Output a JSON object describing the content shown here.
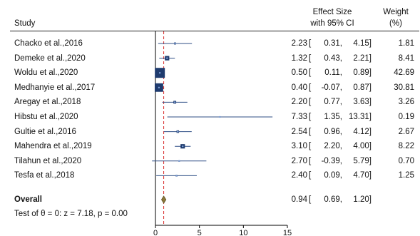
{
  "headers": {
    "study": "Study",
    "effect_line1": "Effect Size",
    "effect_line2": "with 95% CI",
    "weight_line1": "Weight",
    "weight_line2": "(%)"
  },
  "overall": {
    "label": "Overall",
    "es": "0.94",
    "lo": "0.69,",
    "hi": "1.20]",
    "test": "Test of θ = 0: z = 7.18, p = 0.00"
  },
  "colors": {
    "marker": "#1f3b6e",
    "ci_line": "#2f4f86",
    "ref_line": "#d62728",
    "diamond_fill": "#8c7a3a",
    "axis": "#000000"
  },
  "chart_data": {
    "type": "forest",
    "xlim": [
      0,
      15
    ],
    "x_ticks": [
      "0",
      "5",
      "10",
      "15"
    ],
    "reference_line": 0.94,
    "studies": [
      {
        "label": "Chacko et al.,2016",
        "es": 2.23,
        "lo": 0.31,
        "hi": 4.15,
        "es_text": "2.23",
        "lo_text": "0.31,",
        "hi_text": "4.15]",
        "weight": 1.81,
        "weight_text": "1.81"
      },
      {
        "label": "Demeke et al.,2020",
        "es": 1.32,
        "lo": 0.43,
        "hi": 2.21,
        "es_text": "1.32",
        "lo_text": "0.43,",
        "hi_text": "2.21]",
        "weight": 8.41,
        "weight_text": "8.41"
      },
      {
        "label": "Woldu et al.,2020",
        "es": 0.5,
        "lo": 0.11,
        "hi": 0.89,
        "es_text": "0.50",
        "lo_text": "0.11,",
        "hi_text": "0.89]",
        "weight": 42.69,
        "weight_text": "42.69"
      },
      {
        "label": "Medhanyie et al.,2017",
        "es": 0.4,
        "lo": -0.07,
        "hi": 0.87,
        "es_text": "0.40",
        "lo_text": "-0.07,",
        "hi_text": "0.87]",
        "weight": 30.81,
        "weight_text": "30.81"
      },
      {
        "label": "Aregay et al.,2018",
        "es": 2.2,
        "lo": 0.77,
        "hi": 3.63,
        "es_text": "2.20",
        "lo_text": "0.77,",
        "hi_text": "3.63]",
        "weight": 3.26,
        "weight_text": "3.26"
      },
      {
        "label": "Hibstu et al.,2020",
        "es": 7.33,
        "lo": 1.35,
        "hi": 13.31,
        "es_text": "7.33",
        "lo_text": "1.35,",
        "hi_text": "13.31]",
        "weight": 0.19,
        "weight_text": "0.19"
      },
      {
        "label": "Gultie et al.,2016",
        "es": 2.54,
        "lo": 0.96,
        "hi": 4.12,
        "es_text": "2.54",
        "lo_text": "0.96,",
        "hi_text": "4.12]",
        "weight": 2.67,
        "weight_text": "2.67"
      },
      {
        "label": "Mahendra et al.,2019",
        "es": 3.1,
        "lo": 2.2,
        "hi": 4.0,
        "es_text": "3.10",
        "lo_text": "2.20,",
        "hi_text": "4.00]",
        "weight": 8.22,
        "weight_text": "8.22"
      },
      {
        "label": "Tilahun et al.,2020",
        "es": 2.7,
        "lo": -0.39,
        "hi": 5.79,
        "es_text": "2.70",
        "lo_text": "-0.39,",
        "hi_text": "5.79]",
        "weight": 0.7,
        "weight_text": "0.70"
      },
      {
        "label": "Tesfa et al.,2018",
        "es": 2.4,
        "lo": 0.09,
        "hi": 4.7,
        "es_text": "2.40",
        "lo_text": "0.09,",
        "hi_text": "4.70]",
        "weight": 1.25,
        "weight_text": "1.25"
      }
    ],
    "pooled": {
      "es": 0.94,
      "lo": 0.69,
      "hi": 1.2
    }
  }
}
